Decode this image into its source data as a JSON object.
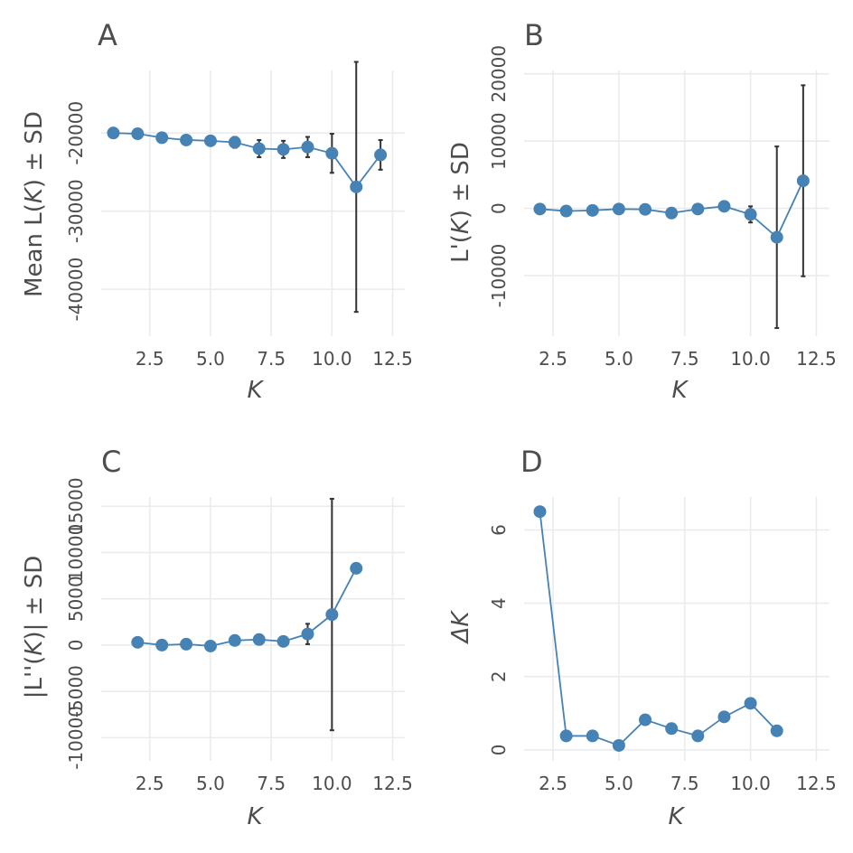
{
  "panels": [
    {
      "letter": "A",
      "x_label": "K",
      "y_label_parts": [
        "Mean L(",
        "K",
        ")  ± SD"
      ],
      "x_ticks": [
        "2.5",
        "5.0",
        "7.5",
        "10.0",
        "12.5"
      ],
      "y_ticks": [
        "-40000",
        "-30000",
        "-20000"
      ]
    },
    {
      "letter": "B",
      "x_label": "K",
      "y_label_parts": [
        "L'(",
        "K",
        ")  ± SD"
      ],
      "x_ticks": [
        "2.5",
        "5.0",
        "7.5",
        "10.0",
        "12.5"
      ],
      "y_ticks": [
        "-10000",
        "0",
        "10000",
        "20000"
      ]
    },
    {
      "letter": "C",
      "x_label": "K",
      "y_label_parts": [
        "|L''(",
        "K",
        ")|  ± SD"
      ],
      "x_ticks": [
        "2.5",
        "5.0",
        "7.5",
        "10.0",
        "12.5"
      ],
      "y_ticks": [
        "-10000",
        "-5000",
        "0",
        "5000",
        "10000",
        "15000"
      ]
    },
    {
      "letter": "D",
      "x_label": "K",
      "y_label_parts": [
        "ΔK"
      ],
      "x_ticks": [
        "2.5",
        "5.0",
        "7.5",
        "10.0",
        "12.5"
      ],
      "y_ticks": [
        "0",
        "2",
        "4",
        "6"
      ]
    }
  ],
  "colors": {
    "series": "#4682b4",
    "error_bar": "#333333",
    "grid": "#ebebeb",
    "text": "#4d4d4d"
  },
  "chart_data": [
    {
      "type": "scatter",
      "panel": "A",
      "x": [
        1,
        2,
        3,
        4,
        5,
        6,
        7,
        8,
        9,
        10,
        11,
        12
      ],
      "y": [
        -20000,
        -20100,
        -20600,
        -20900,
        -21000,
        -21200,
        -22000,
        -22100,
        -21800,
        -22600,
        -26900,
        -22800
      ],
      "sd": [
        250,
        300,
        450,
        550,
        600,
        700,
        1100,
        1100,
        1300,
        2500,
        16000,
        1900
      ],
      "xlim": [
        0.5,
        13
      ],
      "ylim": [
        -46000,
        -12000
      ],
      "x_ticks": [
        2.5,
        5.0,
        7.5,
        10.0,
        12.5
      ],
      "y_ticks": [
        -40000,
        -30000,
        -20000
      ],
      "xlabel": "K",
      "ylabel": "Mean L(K)  ± SD",
      "grid": true,
      "legend": "none",
      "line": true,
      "error_bars": true
    },
    {
      "type": "scatter",
      "panel": "B",
      "x": [
        2,
        3,
        4,
        5,
        6,
        7,
        8,
        9,
        10,
        11,
        12
      ],
      "y": [
        -100,
        -400,
        -300,
        -100,
        -150,
        -700,
        -100,
        300,
        -900,
        -4300,
        4100
      ],
      "sd": [
        200,
        300,
        350,
        250,
        350,
        400,
        250,
        300,
        1200,
        13500,
        14200
      ],
      "xlim": [
        1.4,
        13
      ],
      "ylim": [
        -19000,
        20500
      ],
      "x_ticks": [
        2.5,
        5.0,
        7.5,
        10.0,
        12.5
      ],
      "y_ticks": [
        -10000,
        0,
        10000,
        20000
      ],
      "xlabel": "K",
      "ylabel": "L'(K)  ± SD",
      "grid": true,
      "legend": "none",
      "line": true,
      "error_bars": true
    },
    {
      "type": "scatter",
      "panel": "C",
      "x": [
        2,
        3,
        4,
        5,
        6,
        7,
        8,
        9,
        10,
        11
      ],
      "y": [
        300,
        0,
        100,
        -100,
        500,
        600,
        400,
        1200,
        3300,
        8300
      ],
      "sd": [
        200,
        200,
        250,
        150,
        300,
        350,
        250,
        1100,
        12500,
        200
      ],
      "xlim": [
        0.5,
        13
      ],
      "ylim": [
        -12500,
        16000
      ],
      "x_ticks": [
        2.5,
        5.0,
        7.5,
        10.0,
        12.5
      ],
      "y_ticks": [
        -10000,
        -5000,
        0,
        5000,
        10000,
        15000
      ],
      "xlabel": "K",
      "ylabel": "|L''(K)|  ± SD",
      "grid": true,
      "legend": "none",
      "line": true,
      "error_bars": true
    },
    {
      "type": "line",
      "panel": "D",
      "x": [
        2,
        3,
        4,
        5,
        6,
        7,
        8,
        9,
        10,
        11
      ],
      "y": [
        6.5,
        0.38,
        0.38,
        0.12,
        0.82,
        0.58,
        0.38,
        0.9,
        1.27,
        0.52
      ],
      "xlim": [
        1.4,
        13
      ],
      "ylim": [
        -0.3,
        6.9
      ],
      "x_ticks": [
        2.5,
        5.0,
        7.5,
        10.0,
        12.5
      ],
      "y_ticks": [
        0,
        2,
        4,
        6
      ],
      "xlabel": "K",
      "ylabel": "ΔK",
      "grid": true,
      "legend": "none",
      "line": true,
      "error_bars": false
    }
  ]
}
